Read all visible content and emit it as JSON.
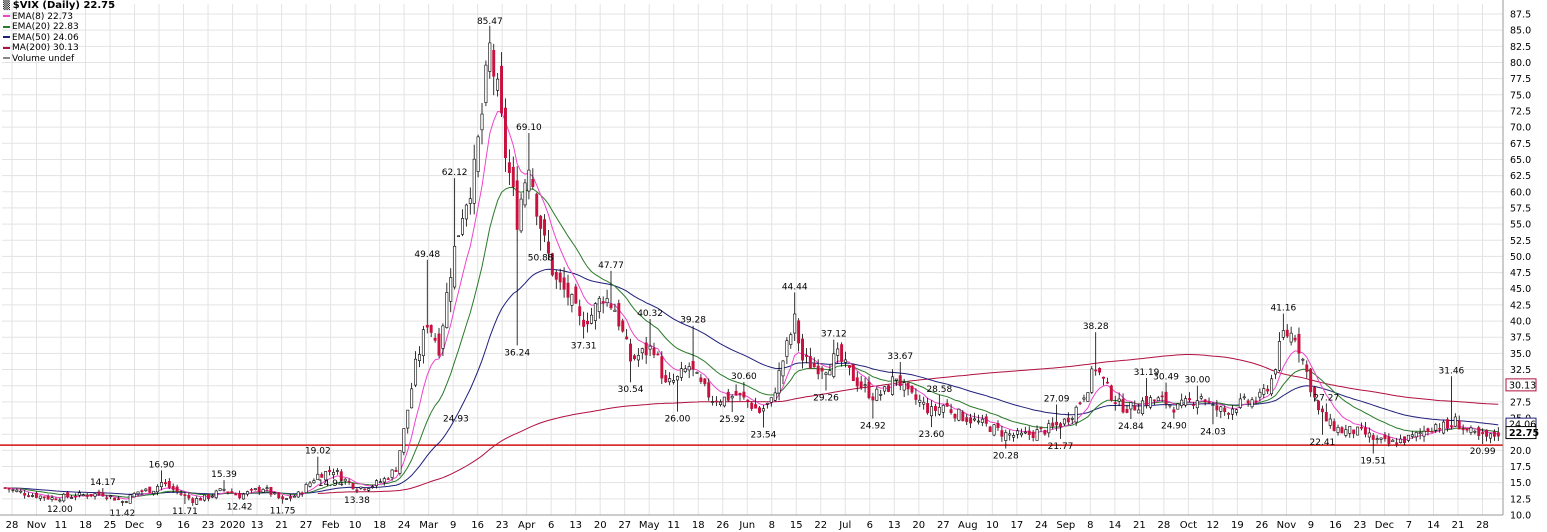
{
  "colors": {
    "up": "#ffffff",
    "down": "#c8103e",
    "wick": "#000000",
    "ema8": "#ee44cc",
    "ema20": "#2a7a2a",
    "ema50": "#1f1f7a",
    "ma200": "#b01040",
    "support": "#d01010",
    "grid": "#e3e3e3"
  },
  "legend": {
    "title": "$VIX (Daily) 22.75",
    "items": [
      {
        "label": "EMA(8) 22.73",
        "color": "#ee44cc"
      },
      {
        "label": "EMA(20) 22.83",
        "color": "#2a7a2a"
      },
      {
        "label": "EMA(50) 24.06",
        "color": "#1f1f7a"
      },
      {
        "label": "MA(200) 30.13",
        "color": "#b01040"
      },
      {
        "label": "Volume undef",
        "color": "#888888"
      }
    ]
  },
  "chart_data": {
    "type": "candlestick",
    "title": "$VIX (Daily) 22.75",
    "ylim": [
      10,
      87.5
    ],
    "y_ticks": [
      "10.0",
      "12.5",
      "15.0",
      "17.5",
      "20.0",
      "22.5",
      "25.0",
      "27.5",
      "30.0",
      "32.5",
      "35.0",
      "37.5",
      "40.0",
      "42.5",
      "45.0",
      "47.5",
      "50.0",
      "52.5",
      "55.0",
      "57.5",
      "60.0",
      "62.5",
      "65.0",
      "67.5",
      "70.0",
      "72.5",
      "75.0",
      "77.5",
      "80.0",
      "82.5",
      "85.0",
      "87.5"
    ],
    "x_ticks": [
      "28",
      "Nov",
      "11",
      "18",
      "25",
      "Dec",
      "9",
      "16",
      "23",
      "2020",
      "13",
      "21",
      "27",
      "Feb",
      "10",
      "18",
      "24",
      "Mar",
      "9",
      "16",
      "23",
      "Apr",
      "6",
      "13",
      "20",
      "27",
      "May",
      "11",
      "18",
      "26",
      "Jun",
      "8",
      "15",
      "22",
      "Jul",
      "6",
      "13",
      "20",
      "27",
      "Aug",
      "10",
      "17",
      "24",
      "Sep",
      "8",
      "14",
      "21",
      "28",
      "Oct",
      "12",
      "19",
      "26",
      "Nov",
      "9",
      "16",
      "23",
      "Dec",
      "7",
      "14",
      "21",
      "28"
    ],
    "price_labels": [
      {
        "label": "30.13",
        "value": 30.13,
        "color": "#b01040"
      },
      {
        "label": "24.06",
        "value": 24.06,
        "color": "#1f1f7a"
      },
      {
        "label": "22.75",
        "value": 22.75,
        "color": "#000000"
      }
    ],
    "support_line": 20.8,
    "annotations": [
      {
        "text": "12.00",
        "i": 14,
        "v": 12.0,
        "pos": "below"
      },
      {
        "text": "14.17",
        "i": 25,
        "v": 14.17,
        "pos": "above"
      },
      {
        "text": "11.42",
        "i": 30,
        "v": 11.42,
        "pos": "below"
      },
      {
        "text": "16.90",
        "i": 40,
        "v": 16.9,
        "pos": "above"
      },
      {
        "text": "11.71",
        "i": 46,
        "v": 11.71,
        "pos": "below"
      },
      {
        "text": "15.39",
        "i": 56,
        "v": 15.39,
        "pos": "above"
      },
      {
        "text": "12.42",
        "i": 60,
        "v": 12.42,
        "pos": "below"
      },
      {
        "text": "11.75",
        "i": 71,
        "v": 11.75,
        "pos": "below"
      },
      {
        "text": "14.94",
        "i": 79,
        "v": 14.94,
        "pos": "right"
      },
      {
        "text": "19.02",
        "i": 80,
        "v": 19.02,
        "pos": "above"
      },
      {
        "text": "13.38",
        "i": 90,
        "v": 13.38,
        "pos": "below"
      },
      {
        "text": "24.93",
        "i": 111,
        "v": 24.93,
        "pos": "right"
      },
      {
        "text": "49.48",
        "i": 108,
        "v": 49.48,
        "pos": "above"
      },
      {
        "text": "62.12",
        "i": 115,
        "v": 62.12,
        "pos": "above"
      },
      {
        "text": "85.47",
        "i": 124,
        "v": 85.47,
        "pos": "above"
      },
      {
        "text": "69.10",
        "i": 134,
        "v": 69.1,
        "pos": "above"
      },
      {
        "text": "36.24",
        "i": 131,
        "v": 36.24,
        "pos": "below"
      },
      {
        "text": "50.88",
        "i": 137,
        "v": 50.88,
        "pos": "below"
      },
      {
        "text": "47.77",
        "i": 155,
        "v": 47.77,
        "pos": "above"
      },
      {
        "text": "37.31",
        "i": 148,
        "v": 37.31,
        "pos": "below"
      },
      {
        "text": "40.32",
        "i": 165,
        "v": 40.32,
        "pos": "above"
      },
      {
        "text": "30.54",
        "i": 160,
        "v": 30.54,
        "pos": "below"
      },
      {
        "text": "39.28",
        "i": 176,
        "v": 39.28,
        "pos": "above"
      },
      {
        "text": "26.00",
        "i": 172,
        "v": 26.0,
        "pos": "below"
      },
      {
        "text": "30.60",
        "i": 189,
        "v": 30.6,
        "pos": "above"
      },
      {
        "text": "25.92",
        "i": 186,
        "v": 25.92,
        "pos": "below"
      },
      {
        "text": "23.54",
        "i": 194,
        "v": 23.54,
        "pos": "below"
      },
      {
        "text": "44.44",
        "i": 202,
        "v": 44.44,
        "pos": "above"
      },
      {
        "text": "29.26",
        "i": 210,
        "v": 29.26,
        "pos": "below"
      },
      {
        "text": "37.12",
        "i": 212,
        "v": 37.12,
        "pos": "above"
      },
      {
        "text": "24.92",
        "i": 222,
        "v": 24.92,
        "pos": "below"
      },
      {
        "text": "33.67",
        "i": 229,
        "v": 33.67,
        "pos": "above"
      },
      {
        "text": "28.58",
        "i": 239,
        "v": 28.58,
        "pos": "above"
      },
      {
        "text": "23.60",
        "i": 237,
        "v": 23.6,
        "pos": "below"
      },
      {
        "text": "20.28",
        "i": 256,
        "v": 20.28,
        "pos": "below"
      },
      {
        "text": "27.09",
        "i": 269,
        "v": 27.09,
        "pos": "above"
      },
      {
        "text": "21.77",
        "i": 270,
        "v": 21.77,
        "pos": "below"
      },
      {
        "text": "38.28",
        "i": 279,
        "v": 38.28,
        "pos": "above"
      },
      {
        "text": "24.84",
        "i": 288,
        "v": 24.84,
        "pos": "below"
      },
      {
        "text": "31.19",
        "i": 292,
        "v": 31.19,
        "pos": "above"
      },
      {
        "text": "30.49",
        "i": 297,
        "v": 30.49,
        "pos": "above"
      },
      {
        "text": "24.90",
        "i": 299,
        "v": 24.9,
        "pos": "below"
      },
      {
        "text": "30.00",
        "i": 305,
        "v": 30.0,
        "pos": "above"
      },
      {
        "text": "24.03",
        "i": 309,
        "v": 24.03,
        "pos": "below"
      },
      {
        "text": "41.16",
        "i": 327,
        "v": 41.16,
        "pos": "above"
      },
      {
        "text": "27.27",
        "i": 338,
        "v": 27.27,
        "pos": "above"
      },
      {
        "text": "22.41",
        "i": 337,
        "v": 22.41,
        "pos": "below"
      },
      {
        "text": "19.51",
        "i": 350,
        "v": 19.51,
        "pos": "below"
      },
      {
        "text": "31.46",
        "i": 370,
        "v": 31.46,
        "pos": "above"
      },
      {
        "text": "20.99",
        "i": 378,
        "v": 20.99,
        "pos": "below"
      }
    ],
    "waypoints": [
      [
        0,
        14.2
      ],
      [
        6,
        13.2
      ],
      [
        12,
        12.6
      ],
      [
        18,
        13.0
      ],
      [
        25,
        13.3
      ],
      [
        30,
        12.1
      ],
      [
        34,
        13.6
      ],
      [
        38,
        14.0
      ],
      [
        40,
        15.0
      ],
      [
        44,
        13.6
      ],
      [
        48,
        12.3
      ],
      [
        52,
        12.8
      ],
      [
        56,
        14.0
      ],
      [
        60,
        13.0
      ],
      [
        66,
        14.2
      ],
      [
        71,
        12.2
      ],
      [
        75,
        13.2
      ],
      [
        80,
        16.2
      ],
      [
        84,
        17.0
      ],
      [
        87,
        15.4
      ],
      [
        90,
        14.2
      ],
      [
        94,
        14.6
      ],
      [
        97,
        15.5
      ],
      [
        100,
        17.2
      ],
      [
        102,
        23.0
      ],
      [
        105,
        33.0
      ],
      [
        108,
        40.0
      ],
      [
        111,
        36.0
      ],
      [
        114,
        48.0
      ],
      [
        117,
        57.0
      ],
      [
        120,
        63.0
      ],
      [
        122,
        72.0
      ],
      [
        124,
        82.0
      ],
      [
        126,
        75.0
      ],
      [
        128,
        66.0
      ],
      [
        131,
        56.0
      ],
      [
        134,
        65.0
      ],
      [
        136,
        58.0
      ],
      [
        138,
        52.0
      ],
      [
        141,
        46.0
      ],
      [
        144,
        44.0
      ],
      [
        147,
        40.0
      ],
      [
        150,
        41.0
      ],
      [
        153,
        44.0
      ],
      [
        156,
        42.0
      ],
      [
        158,
        38.0
      ],
      [
        160,
        34.0
      ],
      [
        163,
        35.0
      ],
      [
        166,
        36.0
      ],
      [
        169,
        30.0
      ],
      [
        172,
        31.0
      ],
      [
        175,
        33.0
      ],
      [
        178,
        30.0
      ],
      [
        181,
        28.0
      ],
      [
        184,
        28.0
      ],
      [
        187,
        28.6
      ],
      [
        190,
        27.5
      ],
      [
        193,
        26.0
      ],
      [
        196,
        27.5
      ],
      [
        199,
        34.0
      ],
      [
        202,
        40.0
      ],
      [
        204,
        34.0
      ],
      [
        207,
        33.0
      ],
      [
        210,
        33.0
      ],
      [
        213,
        34.5
      ],
      [
        216,
        32.0
      ],
      [
        219,
        30.0
      ],
      [
        222,
        28.5
      ],
      [
        225,
        29.0
      ],
      [
        228,
        31.5
      ],
      [
        231,
        28.5
      ],
      [
        234,
        27.5
      ],
      [
        237,
        26.0
      ],
      [
        240,
        27.0
      ],
      [
        244,
        25.5
      ],
      [
        248,
        24.5
      ],
      [
        252,
        23.6
      ],
      [
        256,
        22.5
      ],
      [
        260,
        22.2
      ],
      [
        264,
        22.8
      ],
      [
        268,
        23.5
      ],
      [
        271,
        24.5
      ],
      [
        274,
        26.5
      ],
      [
        277,
        30.0
      ],
      [
        279,
        33.0
      ],
      [
        282,
        29.5
      ],
      [
        285,
        27.0
      ],
      [
        288,
        26.5
      ],
      [
        291,
        27.5
      ],
      [
        294,
        27.8
      ],
      [
        297,
        27.5
      ],
      [
        300,
        26.5
      ],
      [
        303,
        27.5
      ],
      [
        306,
        28.5
      ],
      [
        309,
        26.5
      ],
      [
        312,
        26.0
      ],
      [
        315,
        27.0
      ],
      [
        318,
        27.5
      ],
      [
        321,
        28.0
      ],
      [
        324,
        31.0
      ],
      [
        327,
        38.0
      ],
      [
        330,
        38.0
      ],
      [
        333,
        32.0
      ],
      [
        336,
        26.0
      ],
      [
        339,
        24.0
      ],
      [
        342,
        23.0
      ],
      [
        345,
        23.0
      ],
      [
        348,
        22.5
      ],
      [
        351,
        21.5
      ],
      [
        354,
        21.0
      ],
      [
        357,
        21.5
      ],
      [
        360,
        22.0
      ],
      [
        363,
        23.0
      ],
      [
        366,
        24.0
      ],
      [
        369,
        23.5
      ],
      [
        371,
        24.5
      ],
      [
        374,
        23.0
      ],
      [
        377,
        22.0
      ],
      [
        380,
        22.0
      ],
      [
        382,
        22.75
      ]
    ]
  }
}
